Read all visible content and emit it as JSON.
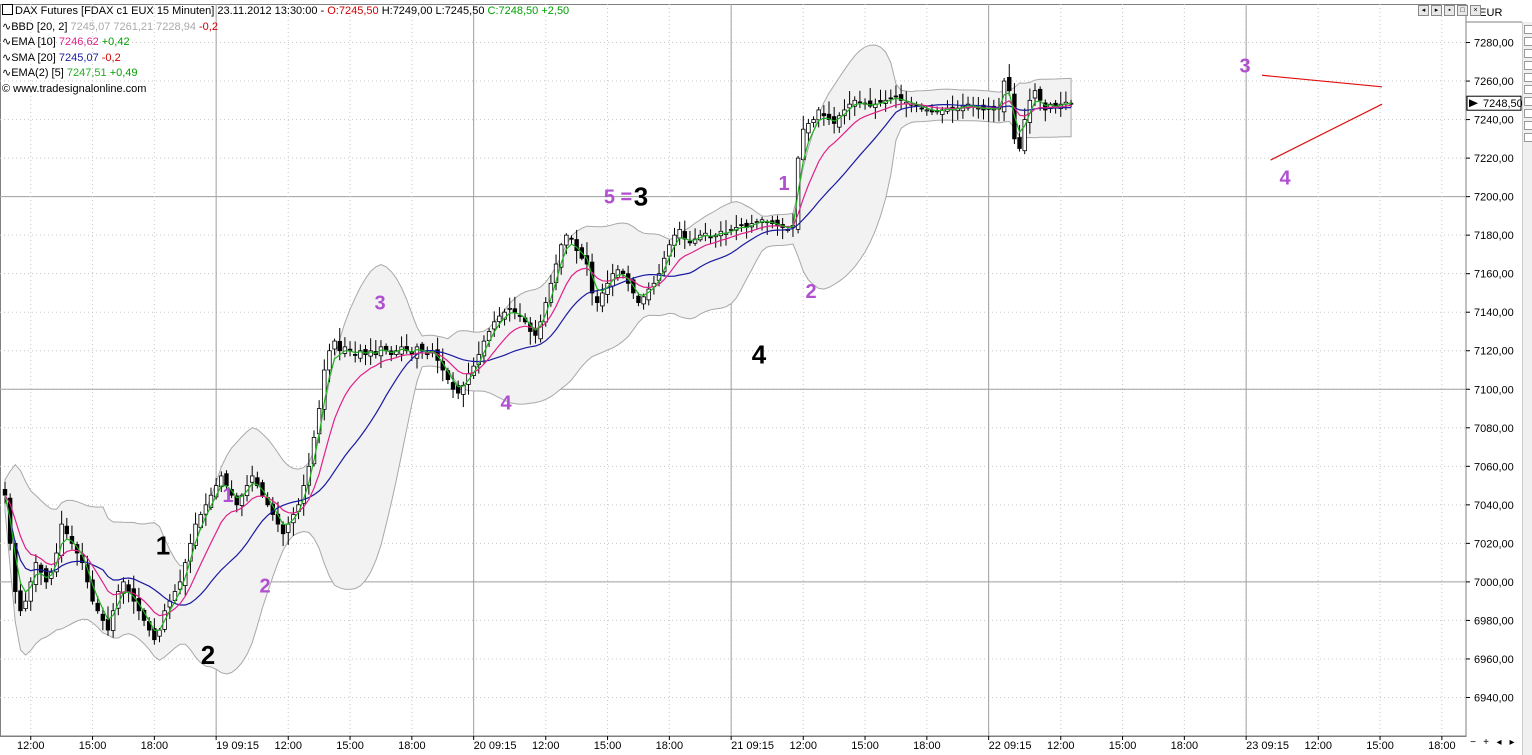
{
  "chart_data": {
    "type": "candlestick",
    "title": "DAX Futures [FDAX c1 EUX  15 Minuten] 23.11.2012 13:30:00",
    "ohlc_header": {
      "title_text": "DAX Futures [FDAX c1 EUX  15 Minuten] 23.11.2012 13:30:00 - ",
      "o": "O:7245,50",
      "h": "H:7249,00",
      "l": "L:7245,50",
      "c": "C:7248,50",
      "chg": "+2,50"
    },
    "indicators": [
      {
        "label": "BBD [20, 2]",
        "values": "7245,07 7261,21 7228,94",
        "chg": "-0,2",
        "color": "#b0b0b0"
      },
      {
        "label": "EMA [10]",
        "values": "7246,62",
        "chg": "+0,42",
        "color": "#e0208a"
      },
      {
        "label": "SMA [20]",
        "values": "7245,07",
        "chg": "-0,2",
        "color": "#1a1aa0"
      },
      {
        "label": "EMA(2) [5]",
        "values": "7247,51",
        "chg": "+0,49",
        "color": "#20b020"
      }
    ],
    "copyright": "© www.tradesignalonline.com",
    "currency": "€/EUR",
    "last_price": "7248,50",
    "ylim": [
      6920,
      7300
    ],
    "yticks": [
      "6940,00",
      "6960,00",
      "6980,00",
      "7000,00",
      "7020,00",
      "7040,00",
      "7060,00",
      "7080,00",
      "7100,00",
      "7120,00",
      "7140,00",
      "7160,00",
      "7180,00",
      "7200,00",
      "7220,00",
      "7240,00",
      "7260,00",
      "7280,00"
    ],
    "ytick_values": [
      6940,
      6960,
      6980,
      7000,
      7020,
      7040,
      7060,
      7080,
      7100,
      7120,
      7140,
      7160,
      7180,
      7200,
      7220,
      7240,
      7260,
      7280
    ],
    "xticks": [
      {
        "bar": 5,
        "label": "12:00"
      },
      {
        "bar": 17,
        "label": "15:00"
      },
      {
        "bar": 29,
        "label": "18:00"
      },
      {
        "bar": 41,
        "label": "19",
        "sub": "09:15"
      },
      {
        "bar": 55,
        "label": "12:00"
      },
      {
        "bar": 67,
        "label": "15:00"
      },
      {
        "bar": 79,
        "label": "18:00"
      },
      {
        "bar": 91,
        "label": "20",
        "sub": "09:15"
      },
      {
        "bar": 105,
        "label": "12:00"
      },
      {
        "bar": 117,
        "label": "15:00"
      },
      {
        "bar": 129,
        "label": "18:00"
      },
      {
        "bar": 141,
        "label": "21",
        "sub": "09:15"
      },
      {
        "bar": 155,
        "label": "12:00"
      },
      {
        "bar": 167,
        "label": "15:00"
      },
      {
        "bar": 179,
        "label": "18:00"
      },
      {
        "bar": 191,
        "label": "22",
        "sub": "09:15"
      },
      {
        "bar": 205,
        "label": "12:00"
      },
      {
        "bar": 217,
        "label": "15:00"
      },
      {
        "bar": 229,
        "label": "18:00"
      },
      {
        "bar": 241,
        "label": "23",
        "sub": "09:15"
      },
      {
        "bar": 255,
        "label": "12:00"
      },
      {
        "bar": 267,
        "label": "15:00"
      },
      {
        "bar": 279,
        "label": "18:00"
      }
    ],
    "day_separators": [
      41,
      91,
      141,
      191,
      241
    ],
    "closes": [
      7045,
      7020,
      6995,
      6985,
      6990,
      7000,
      7010,
      7005,
      7000,
      7005,
      7015,
      7030,
      7025,
      7020,
      7015,
      7010,
      7000,
      6990,
      6985,
      6980,
      6975,
      6985,
      6995,
      7000,
      6995,
      6990,
      6985,
      6980,
      6975,
      6970,
      6975,
      6985,
      6990,
      6995,
      7000,
      7010,
      7020,
      7030,
      7035,
      7040,
      7045,
      7050,
      7055,
      7050,
      7045,
      7040,
      7045,
      7050,
      7055,
      7050,
      7045,
      7040,
      7035,
      7030,
      7025,
      7030,
      7035,
      7040,
      7050,
      7060,
      7075,
      7090,
      7110,
      7120,
      7125,
      7120,
      7122,
      7120,
      7118,
      7120,
      7118,
      7120,
      7118,
      7122,
      7120,
      7118,
      7120,
      7122,
      7120,
      7118,
      7122,
      7120,
      7118,
      7120,
      7115,
      7110,
      7105,
      7100,
      7098,
      7102,
      7108,
      7112,
      7118,
      7125,
      7130,
      7135,
      7138,
      7140,
      7142,
      7140,
      7138,
      7135,
      7130,
      7128,
      7135,
      7145,
      7155,
      7165,
      7175,
      7180,
      7178,
      7172,
      7168,
      7165,
      7150,
      7145,
      7150,
      7155,
      7160,
      7162,
      7160,
      7155,
      7150,
      7145,
      7148,
      7152,
      7155,
      7160,
      7168,
      7175,
      7180,
      7183,
      7178,
      7176,
      7178,
      7180,
      7181,
      7179,
      7180,
      7182,
      7181,
      7183,
      7184,
      7185,
      7184,
      7186,
      7187,
      7188,
      7187,
      7186,
      7185,
      7184,
      7183,
      7185,
      7220,
      7235,
      7238,
      7240,
      7245,
      7242,
      7240,
      7238,
      7242,
      7245,
      7248,
      7250,
      7249,
      7248,
      7247,
      7248,
      7249,
      7250,
      7251,
      7252,
      7250,
      7249,
      7248,
      7247,
      7246,
      7245,
      7244,
      7244,
      7245,
      7246,
      7245,
      7246,
      7247,
      7248,
      7247,
      7246,
      7245,
      7246,
      7245,
      7246,
      7260,
      7255,
      7230,
      7225,
      7240,
      7250,
      7255,
      7250,
      7245,
      7248,
      7246,
      7248,
      7249,
      7248.5
    ],
    "ema2_5": [],
    "ema10": [],
    "sma20": [],
    "annotations": [
      {
        "text": "1",
        "color": "#000000",
        "bar": 16,
        "price": 7019
      },
      {
        "text": "2",
        "color": "#000000",
        "bar": 20,
        "price": 6962
      },
      {
        "text": "1",
        "color": "#b050d0",
        "bar": 26,
        "price": 7045
      },
      {
        "text": "2",
        "color": "#b050d0",
        "bar": 28,
        "price": 6998
      },
      {
        "text": "3",
        "color": "#b050d0",
        "bar": 43,
        "price": 7145
      },
      {
        "text": "4",
        "color": "#b050d0",
        "bar": 57,
        "price": 7093
      },
      {
        "text": "5 =",
        "color": "#b050d0",
        "bar": 70,
        "price": 7200
      },
      {
        "text": "3",
        "color": "#000000",
        "bar": 74,
        "price": 7200
      },
      {
        "text": "4",
        "color": "#000000",
        "bar": 88,
        "price": 7118
      },
      {
        "text": "1",
        "color": "#b050d0",
        "bar": 91,
        "price": 7207
      },
      {
        "text": "2",
        "color": "#b050d0",
        "bar": 95,
        "price": 7151
      },
      {
        "text": "3",
        "color": "#b050d0",
        "bar": 151,
        "price": 7268
      },
      {
        "text": "4",
        "color": "#b050d0",
        "bar": 155,
        "price": 7210
      }
    ],
    "triangle_top": [
      [
        153,
        7263
      ],
      [
        167,
        7257
      ]
    ],
    "triangle_bottom": [
      [
        154,
        7219
      ],
      [
        167,
        7248
      ]
    ]
  }
}
